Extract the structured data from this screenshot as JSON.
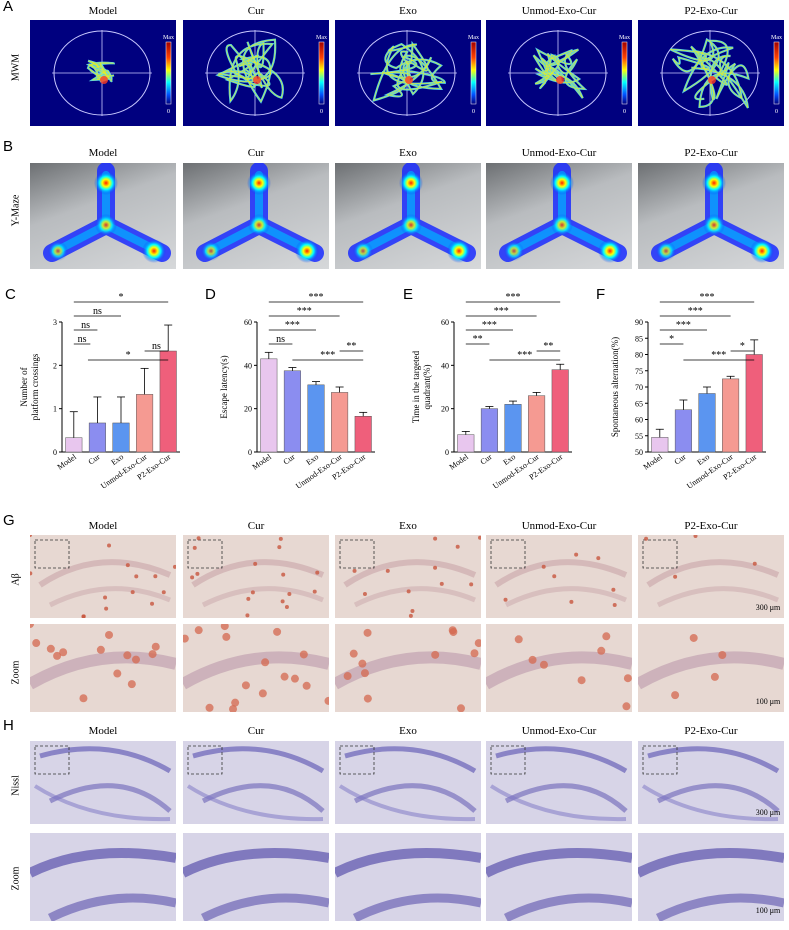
{
  "panel_letters": {
    "A": "A",
    "B": "B",
    "C": "C",
    "D": "D",
    "E": "E",
    "F": "F",
    "G": "G",
    "H": "H"
  },
  "groups": [
    "Model",
    "Cur",
    "Exo",
    "Unmod-Exo-Cur",
    "P2-Exo-Cur"
  ],
  "row_labels": {
    "mwm": "MWM",
    "ymaze": "Y-Maze",
    "abeta": "Aβ",
    "zoom": "Zoom",
    "nissl": "Nissl"
  },
  "colorbar": {
    "max": "Max",
    "min": "0"
  },
  "scale_bars": {
    "s300": "300 μm",
    "s100": "100 μm"
  },
  "colors": {
    "Model": "#e8c6ee",
    "Cur": "#8b8df0",
    "Exo": "#5b95f0",
    "Unmod-Exo-Cur": "#f59a92",
    "P2-Exo-Cur": "#ef5f7b"
  },
  "chart_data": [
    {
      "type": "bar",
      "panel": "C",
      "ylabel_lines": [
        "Number of",
        "platform crossings"
      ],
      "categories": [
        "Model",
        "Cur",
        "Exo",
        "Unmod-Exo-Cur",
        "P2-Exo-Cur"
      ],
      "values": [
        0.33,
        0.67,
        0.67,
        1.33,
        2.33
      ],
      "errors": [
        0.6,
        0.6,
        0.6,
        0.6,
        0.6
      ],
      "ylim": [
        0,
        3
      ],
      "ticks": [
        0,
        1,
        2,
        3
      ],
      "sig": [
        {
          "a": 0,
          "b": 4,
          "label": "*"
        },
        {
          "a": 0,
          "b": 2,
          "label": "ns"
        },
        {
          "a": 0,
          "b": 1,
          "label": "ns"
        },
        {
          "a": 0,
          "b": 0.7,
          "label": "ns"
        },
        {
          "a": 0.6,
          "b": 4,
          "label": "*"
        },
        {
          "a": 3,
          "b": 4,
          "label": "ns"
        }
      ]
    },
    {
      "type": "bar",
      "panel": "D",
      "ylabel_lines": [
        "Escape latency(s)"
      ],
      "categories": [
        "Model",
        "Cur",
        "Exo",
        "Unmod-Exo-Cur",
        "P2-Exo-Cur"
      ],
      "values": [
        43,
        37.5,
        31,
        27.5,
        16.5
      ],
      "errors": [
        3,
        1.5,
        1.5,
        2.5,
        1.8
      ],
      "ylim": [
        0,
        60
      ],
      "ticks": [
        0,
        20,
        40,
        60
      ],
      "sig": [
        {
          "a": 0,
          "b": 4,
          "label": "***"
        },
        {
          "a": 0,
          "b": 3,
          "label": "***"
        },
        {
          "a": 0,
          "b": 2,
          "label": "***"
        },
        {
          "a": 0,
          "b": 1,
          "label": "ns"
        },
        {
          "a": 1,
          "b": 4,
          "label": "***"
        },
        {
          "a": 3,
          "b": 4,
          "label": "**"
        }
      ]
    },
    {
      "type": "bar",
      "panel": "E",
      "ylabel_lines": [
        "Time in the targeted",
        "quadrant(%)"
      ],
      "categories": [
        "Model",
        "Cur",
        "Exo",
        "Unmod-Exo-Cur",
        "P2-Exo-Cur"
      ],
      "values": [
        8,
        20,
        22,
        26,
        38
      ],
      "errors": [
        1.5,
        1,
        1.5,
        1.5,
        2.5
      ],
      "ylim": [
        0,
        60
      ],
      "ticks": [
        0,
        20,
        40,
        60
      ],
      "sig": [
        {
          "a": 0,
          "b": 4,
          "label": "***"
        },
        {
          "a": 0,
          "b": 3,
          "label": "***"
        },
        {
          "a": 0,
          "b": 2,
          "label": "***"
        },
        {
          "a": 0,
          "b": 1,
          "label": "**"
        },
        {
          "a": 1,
          "b": 4,
          "label": "***"
        },
        {
          "a": 3,
          "b": 4,
          "label": "**"
        }
      ]
    },
    {
      "type": "bar",
      "panel": "F",
      "ylabel_lines": [
        "Spontaneous alternation(%)"
      ],
      "categories": [
        "Model",
        "Cur",
        "Exo",
        "Unmod-Exo-Cur",
        "P2-Exo-Cur"
      ],
      "values": [
        54.5,
        63,
        68,
        72.5,
        80
      ],
      "errors": [
        2.5,
        3,
        2,
        0.8,
        4.5
      ],
      "ylim": [
        50,
        90
      ],
      "ticks": [
        50,
        55,
        60,
        65,
        70,
        75,
        80,
        85,
        90
      ],
      "sig": [
        {
          "a": 0,
          "b": 4,
          "label": "***"
        },
        {
          "a": 0,
          "b": 3,
          "label": "***"
        },
        {
          "a": 0,
          "b": 2,
          "label": "***"
        },
        {
          "a": 0,
          "b": 1,
          "label": "*"
        },
        {
          "a": 1,
          "b": 4,
          "label": "***"
        },
        {
          "a": 3,
          "b": 4,
          "label": "*"
        }
      ]
    }
  ]
}
